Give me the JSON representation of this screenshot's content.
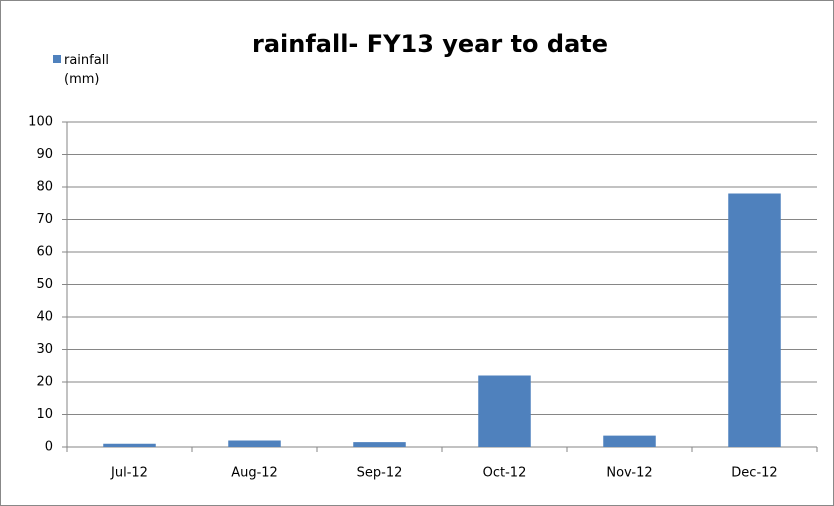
{
  "chart_data": {
    "type": "bar",
    "title": "rainfall- FY13 year to date",
    "categories": [
      "Jul-12",
      "Aug-12",
      "Sep-12",
      "Oct-12",
      "Nov-12",
      "Dec-12"
    ],
    "series": [
      {
        "name": "rainfall (mm)",
        "color": "#4f81bd",
        "values": [
          1,
          2,
          1.5,
          22,
          3.5,
          78
        ]
      }
    ],
    "ylim": [
      0,
      100
    ],
    "yticks": [
      0,
      10,
      20,
      30,
      40,
      50,
      60,
      70,
      80,
      90,
      100
    ],
    "grid": true,
    "legend": "top-left"
  }
}
